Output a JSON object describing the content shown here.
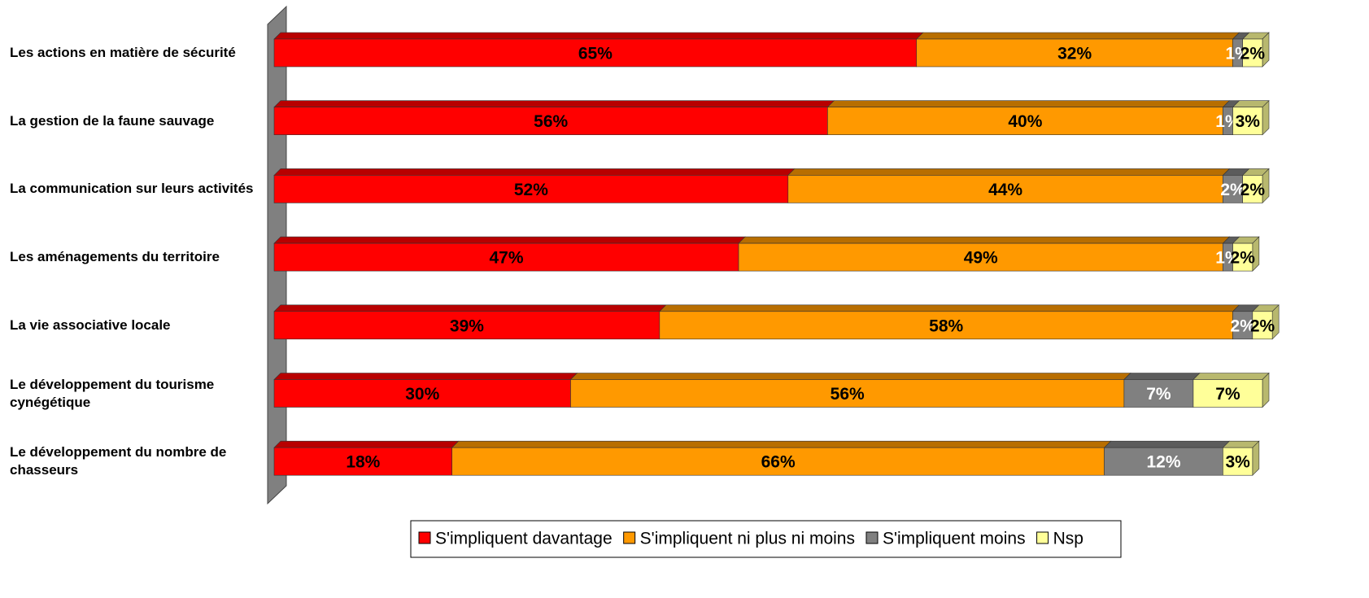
{
  "chart_data": {
    "type": "stacked-bar-3d",
    "categories": [
      "Les actions en matière de sécurité",
      "La gestion de la faune sauvage",
      "La communication sur leurs activités",
      "Les aménagements du territoire",
      "La vie associative locale",
      "Le développement du tourisme cynégétique",
      "Le développement du nombre de chasseurs"
    ],
    "xlim": [
      0,
      100
    ],
    "series": [
      {
        "name": "S'impliquent davantage",
        "color": "#ff0000",
        "values": [
          65,
          56,
          52,
          47,
          39,
          30,
          18
        ],
        "value_labels": [
          "65%",
          "56%",
          "52%",
          "47%",
          "39%",
          "30%",
          "18%"
        ]
      },
      {
        "name": "S'impliquent ni plus ni moins",
        "color": "#ff9900",
        "values": [
          32,
          40,
          44,
          49,
          58,
          56,
          66
        ],
        "value_labels": [
          "32%",
          "40%",
          "44%",
          "49%",
          "58%",
          "56%",
          "66%"
        ]
      },
      {
        "name": "S'impliquent moins",
        "color": "#808080",
        "values": [
          1,
          1,
          2,
          1,
          2,
          7,
          12
        ],
        "value_labels": [
          "1%",
          "1%",
          "2%",
          "1%",
          "2%",
          "7%",
          "12%"
        ]
      },
      {
        "name": "Nsp",
        "color": "#ffff99",
        "values": [
          2,
          3,
          2,
          2,
          2,
          7,
          3
        ],
        "value_labels": [
          "2%",
          "3%",
          "2%",
          "2%",
          "2%",
          "7%",
          "3%"
        ]
      }
    ],
    "legend": "bottom"
  }
}
